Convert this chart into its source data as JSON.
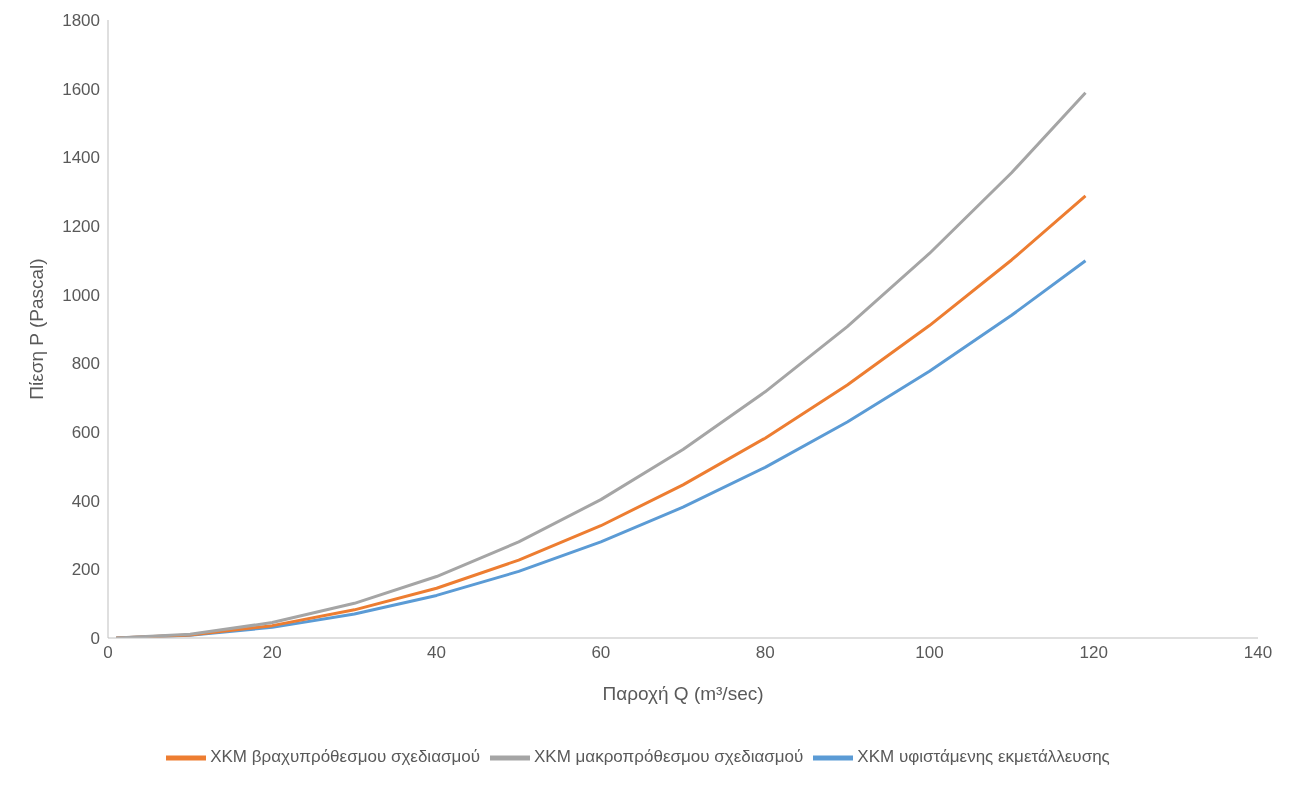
{
  "chart_data": {
    "type": "line",
    "xlabel": "Παροχή Q (m³/sec)",
    "ylabel": "Πίεση P (Pascal)",
    "x": [
      1,
      10,
      20,
      30,
      40,
      50,
      60,
      70,
      80,
      90,
      100,
      110,
      119
    ],
    "xlim": [
      0,
      140
    ],
    "xticks": [
      0,
      20,
      40,
      60,
      80,
      100,
      120,
      140
    ],
    "ylim": [
      0,
      1800
    ],
    "yticks": [
      0,
      200,
      400,
      600,
      800,
      1000,
      1200,
      1400,
      1600,
      1800
    ],
    "grid": false,
    "legend": "bottom",
    "marker": "none",
    "line_style": "solid",
    "series": [
      {
        "name": "XKM υφιστάμενης εκμετάλλευσης",
        "color": "#5b9bd5",
        "values": [
          0,
          8,
          31,
          70,
          124,
          194,
          280,
          381,
          497,
          629,
          777,
          940,
          1099
        ]
      },
      {
        "name": "XKM βραχυπρόθεσμου σχεδιασμού",
        "color": "#ed7d31",
        "values": [
          0,
          9,
          36,
          82,
          145,
          227,
          327,
          446,
          582,
          737,
          910,
          1101,
          1288
        ]
      },
      {
        "name": "XKM μακροπρόθεσμου σχεδιασμού",
        "color": "#a5a5a5",
        "values": [
          0,
          11,
          45,
          101,
          179,
          280,
          403,
          549,
          717,
          907,
          1120,
          1355,
          1588
        ]
      }
    ]
  }
}
